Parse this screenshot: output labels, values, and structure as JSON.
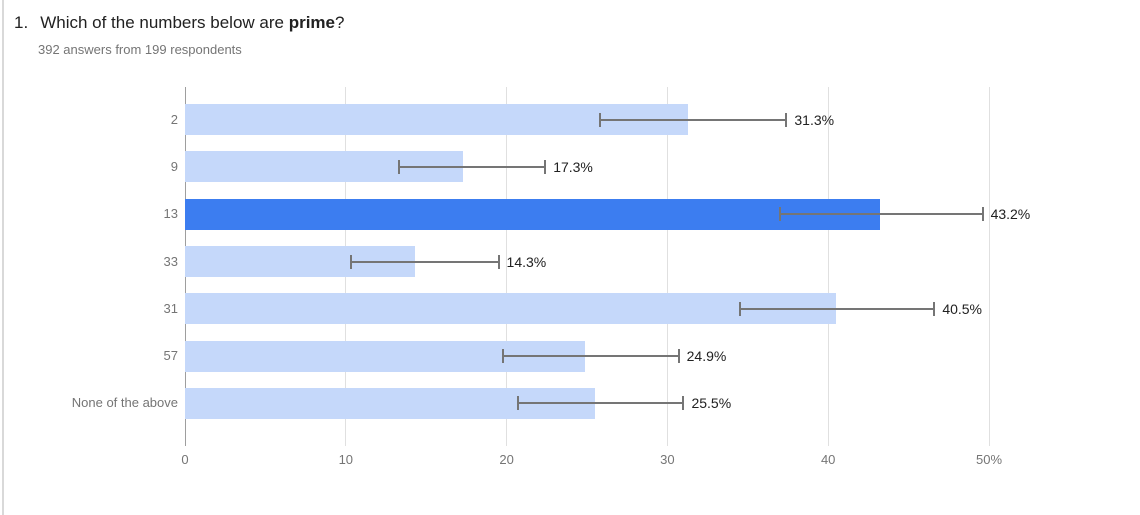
{
  "header": {
    "question_number": "1.",
    "title_prefix": "Which of the numbers below are ",
    "title_bold": "prime",
    "title_suffix": "?",
    "subtitle": "392 answers from 199 respondents"
  },
  "chart_data": {
    "type": "bar",
    "orientation": "horizontal",
    "title": "Which of the numbers below are prime?",
    "subtitle": "392 answers from 199 respondents",
    "categories": [
      "2",
      "9",
      "13",
      "33",
      "31",
      "57",
      "None of the above"
    ],
    "values": [
      31.3,
      17.3,
      43.2,
      14.3,
      40.5,
      24.9,
      25.5
    ],
    "value_labels": [
      "31.3%",
      "17.3%",
      "43.2%",
      "14.3%",
      "40.5%",
      "24.9%",
      "25.5%"
    ],
    "error_low": [
      25.8,
      13.3,
      37.0,
      10.3,
      34.5,
      19.8,
      20.7
    ],
    "error_high": [
      37.4,
      22.4,
      49.6,
      19.5,
      46.6,
      30.7,
      31.0
    ],
    "highlight_index": 2,
    "highlighted_category": "13",
    "xlim": [
      0,
      50
    ],
    "x_ticks": [
      0,
      10,
      20,
      30,
      40,
      50
    ],
    "x_tick_labels": [
      "0",
      "10",
      "20",
      "30",
      "40",
      "50%"
    ],
    "grid": true,
    "legend": "none",
    "colors": {
      "bar": "#c5d8fa",
      "bar_highlight": "#3c7df0",
      "error": "#757575",
      "gridline": "#e0e0e0",
      "axis_line": "#9e9e9e",
      "value_label": "#212121",
      "category_label": "#757575"
    }
  }
}
